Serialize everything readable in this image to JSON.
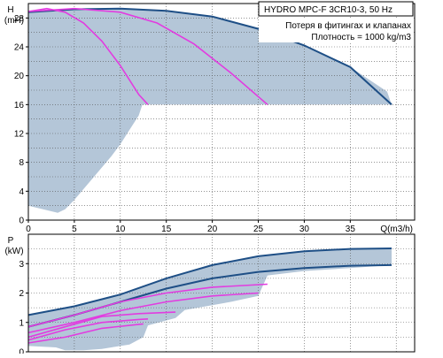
{
  "chart_data": [
    {
      "type": "area",
      "id": "head",
      "title": "HYDRO MPC-F 3CR10-3, 50 Hz",
      "notes": [
        "Потеря в фитингах и клапанах",
        "Плотность = 1000 kg/m3"
      ],
      "ylabel": "H",
      "yunit": "(mH)",
      "xlabel": "Q(m3/h)",
      "xlim": [
        0,
        42
      ],
      "ylim": [
        0,
        30
      ],
      "xticks": [
        0,
        5,
        10,
        15,
        20,
        25,
        30,
        35
      ],
      "yticks": [
        0,
        4,
        8,
        12,
        16,
        20,
        24,
        28
      ],
      "grid": true,
      "colors": {
        "area": "#b4c6d8",
        "max_curve": "#1e4f86",
        "partial_curves": "#e23ce0"
      },
      "area_outline": [
        [
          0,
          28.8
        ],
        [
          5,
          29.2
        ],
        [
          10,
          29.3
        ],
        [
          15,
          29.0
        ],
        [
          20,
          28.2
        ],
        [
          25,
          26.5
        ],
        [
          30,
          24.2
        ],
        [
          35,
          21.2
        ],
        [
          39,
          17.8
        ],
        [
          39.5,
          16
        ],
        [
          12.4,
          16
        ],
        [
          12,
          14.5
        ],
        [
          11,
          12.5
        ],
        [
          10,
          10.5
        ],
        [
          9,
          8.8
        ],
        [
          8,
          7.3
        ],
        [
          7,
          5.8
        ],
        [
          6,
          4.3
        ],
        [
          5,
          2.8
        ],
        [
          4,
          1.5
        ],
        [
          3.2,
          1.0
        ],
        [
          0,
          2.0
        ]
      ],
      "series": [
        {
          "style": "max",
          "x": [
            0,
            5,
            10,
            15,
            20,
            25,
            30,
            35,
            39.5
          ],
          "y": [
            28.8,
            29.2,
            29.3,
            29.0,
            28.2,
            26.5,
            24.2,
            21.2,
            16
          ]
        },
        {
          "style": "partial",
          "x": [
            0,
            2,
            4,
            6,
            8,
            10,
            12,
            13
          ],
          "y": [
            28.9,
            29.3,
            28.8,
            27.3,
            24.8,
            21.4,
            17.4,
            16
          ]
        },
        {
          "style": "partial",
          "x": [
            0,
            5,
            10,
            14,
            18,
            22,
            26
          ],
          "y": [
            28.9,
            29.3,
            28.8,
            27.3,
            24.4,
            20.4,
            16
          ]
        }
      ]
    },
    {
      "type": "area",
      "id": "power",
      "ylabel": "P",
      "yunit": "(kW)",
      "xlim": [
        0,
        42
      ],
      "ylim": [
        0,
        4
      ],
      "yticks": [
        0,
        1,
        2,
        3
      ],
      "grid": true,
      "colors": {
        "area": "#b4c6d8",
        "max_curve": "#1e4f86",
        "partial_curves": "#e23ce0"
      },
      "area_outline": [
        [
          0,
          1.25
        ],
        [
          5,
          1.55
        ],
        [
          10,
          1.95
        ],
        [
          15,
          2.5
        ],
        [
          20,
          2.95
        ],
        [
          25,
          3.25
        ],
        [
          30,
          3.42
        ],
        [
          35,
          3.5
        ],
        [
          39.5,
          3.52
        ],
        [
          39.5,
          2.95
        ],
        [
          35,
          2.85
        ],
        [
          30,
          2.75
        ],
        [
          26,
          2.6
        ],
        [
          25,
          1.9
        ],
        [
          22,
          1.7
        ],
        [
          17,
          1.42
        ],
        [
          16,
          1.15
        ],
        [
          13,
          0.9
        ],
        [
          12.5,
          0.5
        ],
        [
          11,
          0.25
        ],
        [
          8,
          0.1
        ],
        [
          6,
          0.05
        ],
        [
          4,
          0.05
        ],
        [
          3,
          0.15
        ],
        [
          0,
          0.2
        ]
      ],
      "series": [
        {
          "style": "max",
          "x": [
            0,
            5,
            10,
            15,
            20,
            25,
            30,
            35,
            39.5
          ],
          "y": [
            1.25,
            1.55,
            1.95,
            2.5,
            2.95,
            3.25,
            3.42,
            3.5,
            3.52
          ]
        },
        {
          "style": "max",
          "x": [
            0,
            5,
            10,
            15,
            20,
            25,
            30,
            35,
            39.5
          ],
          "y": [
            0.85,
            1.25,
            1.7,
            2.15,
            2.5,
            2.72,
            2.85,
            2.93,
            2.95
          ]
        },
        {
          "style": "partial",
          "x": [
            0,
            5,
            10,
            15,
            20,
            26
          ],
          "y": [
            0.85,
            1.25,
            1.7,
            2.0,
            2.2,
            2.3
          ]
        },
        {
          "style": "partial",
          "x": [
            0,
            5,
            10,
            15,
            20,
            25
          ],
          "y": [
            0.65,
            1.0,
            1.4,
            1.7,
            1.9,
            2.0
          ]
        },
        {
          "style": "partial",
          "x": [
            0,
            4,
            8,
            12,
            16
          ],
          "y": [
            0.5,
            0.85,
            1.2,
            1.3,
            1.35
          ]
        },
        {
          "style": "partial",
          "x": [
            0,
            4,
            8,
            12,
            13
          ],
          "y": [
            0.4,
            0.75,
            1.0,
            1.1,
            1.12
          ]
        },
        {
          "style": "partial",
          "x": [
            0,
            4,
            8,
            12.5
          ],
          "y": [
            0.3,
            0.5,
            0.8,
            0.95
          ]
        }
      ]
    }
  ]
}
